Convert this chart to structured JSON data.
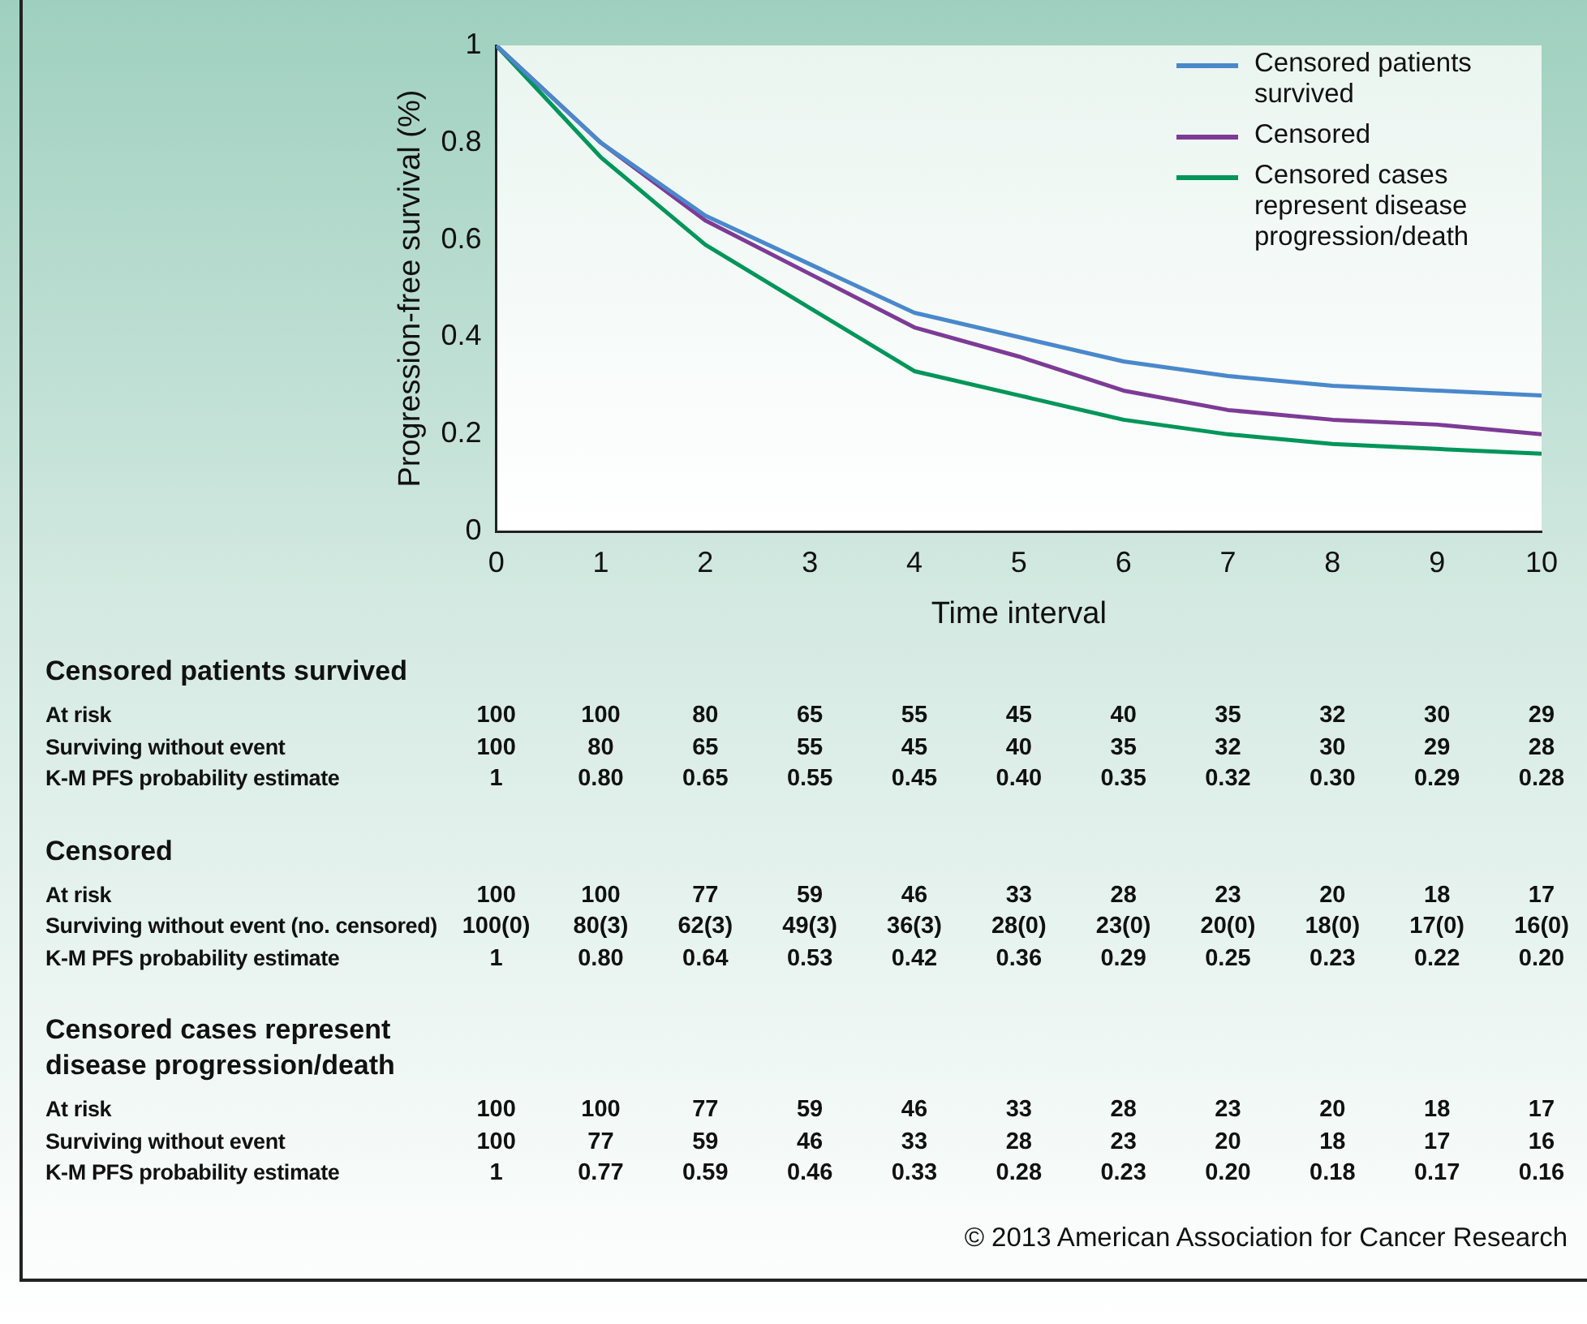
{
  "chart_data": {
    "type": "line",
    "xlabel": "Time interval",
    "ylabel": "Progression-free survival (%)",
    "x": [
      0,
      1,
      2,
      3,
      4,
      5,
      6,
      7,
      8,
      9,
      10
    ],
    "xlim": [
      0,
      10
    ],
    "xticks": [
      0,
      1,
      2,
      3,
      4,
      5,
      6,
      7,
      8,
      9,
      10
    ],
    "ylim": [
      0,
      1
    ],
    "yticks": [
      0,
      0.2,
      0.4,
      0.6,
      0.8,
      1
    ],
    "grid": false,
    "legend": "top right",
    "marker": "none",
    "line_style": "solid",
    "series": [
      {
        "name": "Censored patients survived",
        "color": "#4a88cc",
        "values": [
          1,
          0.8,
          0.65,
          0.55,
          0.45,
          0.4,
          0.35,
          0.32,
          0.3,
          0.29,
          0.28
        ]
      },
      {
        "name": "Censored",
        "color": "#7d3b96",
        "values": [
          1,
          0.8,
          0.64,
          0.53,
          0.42,
          0.36,
          0.29,
          0.25,
          0.23,
          0.22,
          0.2
        ]
      },
      {
        "name": "Censored cases represent disease progression/death",
        "color": "#00955a",
        "values": [
          1,
          0.77,
          0.59,
          0.46,
          0.33,
          0.28,
          0.23,
          0.2,
          0.18,
          0.17,
          0.16
        ]
      }
    ],
    "annotations": [
      "At risk\t100\t100\t80\t65\t55\t45\t40\t35\t32\t30\t29",
      "Surviving without event\t100\t80\t65\t55\t45\t40\t35\t32\t30\t29\t28",
      "K-M PFS probability estimate\t1\t0.80\t0.65\t0.55\t0.45\t0.40\t0.35\t0.32\t0.30\t0.29\t0.28",
      "At risk\t100\t100\t77\t59\t46\t33\t28\t23\t20\t18\t17",
      "Surviving without event (no. censored)\t100(0)\t80(3)\t62(3)\t49(3)\t36(3)\t28(0)\t23(0)\t20(0)\t18(0)\t17(0)\t16(0)",
      "K-M PFS probability estimate\t1\t0.80\t0.64\t0.53\t0.42\t0.36\t0.29\t0.25\t0.23\t0.22\t0.20",
      "At risk\t100\t100\t77\t59\t46\t33\t28\t23\t20\t18\t17",
      "Surviving without event\t100\t77\t59\t46\t33\t28\t23\t20\t18\t17\t16",
      "K-M PFS probability estimate\t1\t0.77\t0.59\t0.46\t0.33\t0.28\t0.23\t0.20\t0.18\t0.17\t0.16",
      "© 2013 American Association for Cancer Research"
    ]
  }
}
